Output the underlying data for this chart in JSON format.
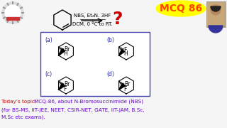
{
  "bg_color": "#f5f5f5",
  "title_box_color": "#ffff00",
  "title_text": "MCQ 86",
  "title_text_color": "#ff4400",
  "reaction_reagent1": "NBS, Et₂N. 3HF",
  "reaction_reagent2": "DCM, 0 ºC to RT.",
  "question_mark_color": "#cc0000",
  "options_box_border": "#4444aa",
  "label_a": "(a)",
  "label_b": "(b)",
  "label_c": "(c)",
  "label_d": "(d)",
  "label_color": "#2222aa",
  "bottom_text_color_label": "#cc0000",
  "bottom_text_color_main": "#6600cc",
  "logo_bg": "#e8e8e8",
  "logo_ring_color": "#44aa44",
  "logo_gear_color": "#888888",
  "logo_stripe_color": "#cc3333",
  "person_bg": "#c8a878"
}
